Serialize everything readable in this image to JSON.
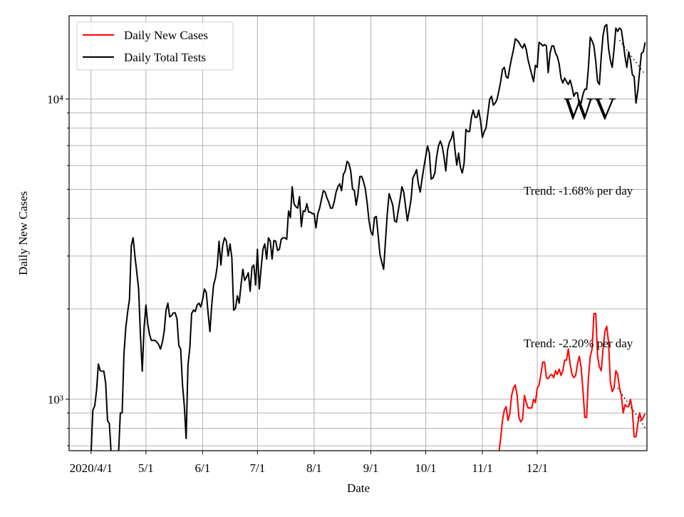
{
  "chart_data": {
    "type": "line",
    "xlabel": "Date",
    "ylabel": "Daily New Cases",
    "log_y": true,
    "grid": true,
    "legend": "upper left",
    "xlim": [
      "2020-03-20",
      "2021-01-30"
    ],
    "xticks": [
      {
        "value": "2020-04-01",
        "label": "2020/4/1"
      },
      {
        "value": "2020-05-01",
        "label": "5/1"
      },
      {
        "value": "2020-06-01",
        "label": "6/1"
      },
      {
        "value": "2020-07-01",
        "label": "7/1"
      },
      {
        "value": "2020-08-01",
        "label": "8/1"
      },
      {
        "value": "2020-09-01",
        "label": "9/1"
      },
      {
        "value": "2020-10-01",
        "label": "10/1"
      },
      {
        "value": "2020-11-01",
        "label": "11/1"
      },
      {
        "value": "2020-12-01",
        "label": "12/1"
      }
    ],
    "ylim": [
      674,
      18950
    ],
    "yticks": [
      {
        "value": 1000,
        "label": "10³"
      },
      {
        "value": 10000,
        "label": "10⁴"
      }
    ],
    "y_minor_ticks": [
      700,
      800,
      900,
      2000,
      3000,
      4000,
      5000,
      6000,
      7000,
      8000,
      9000
    ],
    "annotations": [
      "Trend: -1.68% per day",
      "Trend: -2.20% per day",
      "WV"
    ],
    "series": [
      {
        "name": "Daily New Cases",
        "color": "#ff0000",
        "x": [
          "2020-11-10",
          "2020-11-11",
          "2020-11-12",
          "2020-11-13",
          "2020-11-14",
          "2020-11-15",
          "2020-11-16",
          "2020-11-17",
          "2020-11-18",
          "2020-11-19",
          "2020-11-20",
          "2020-11-21",
          "2020-11-22",
          "2020-11-23",
          "2020-11-24",
          "2020-11-25",
          "2020-11-26",
          "2020-11-27",
          "2020-11-28",
          "2020-11-29",
          "2020-11-30",
          "2020-12-01",
          "2020-12-02",
          "2020-12-03",
          "2020-12-04",
          "2020-12-05",
          "2020-12-06",
          "2020-12-07",
          "2020-12-08",
          "2020-12-09",
          "2020-12-10",
          "2020-12-11",
          "2020-12-12",
          "2020-12-13",
          "2020-12-14",
          "2020-12-15",
          "2020-12-16",
          "2020-12-17",
          "2020-12-18",
          "2020-12-19",
          "2020-12-20",
          "2020-12-21",
          "2020-12-22",
          "2020-12-23",
          "2020-12-24",
          "2020-12-25",
          "2020-12-26",
          "2020-12-27",
          "2020-12-28",
          "2020-12-29",
          "2020-12-30",
          "2020-12-31",
          "2021-01-01",
          "2021-01-02",
          "2021-01-03",
          "2021-01-04",
          "2021-01-05",
          "2021-01-06",
          "2021-01-07",
          "2021-01-08",
          "2021-01-09",
          "2021-01-10",
          "2021-01-11",
          "2021-01-12",
          "2021-01-13",
          "2021-01-14",
          "2021-01-15",
          "2021-01-16",
          "2021-01-17",
          "2021-01-18",
          "2021-01-19",
          "2021-01-20",
          "2021-01-21",
          "2021-01-22",
          "2021-01-23",
          "2021-01-24",
          "2021-01-25",
          "2021-01-26",
          "2021-01-27",
          "2021-01-28",
          "2021-01-29"
        ],
        "values": [
          660,
          740,
          850,
          920,
          945,
          850,
          896,
          1030,
          1090,
          1116,
          1030,
          870,
          840,
          860,
          1030,
          975,
          935,
          935,
          935,
          1000,
          975,
          1090,
          1116,
          1210,
          1330,
          1330,
          1180,
          1170,
          1200,
          1210,
          1180,
          1245,
          1210,
          1260,
          1200,
          1245,
          1350,
          1350,
          1470,
          1310,
          1210,
          1180,
          1200,
          1310,
          1390,
          1280,
          1070,
          870,
          870,
          1180,
          1390,
          1470,
          1930,
          1930,
          1390,
          1280,
          1245,
          1470,
          1680,
          1750,
          1550,
          1140,
          1060,
          1090,
          1245,
          1210,
          1090,
          1030,
          900,
          960,
          945,
          945,
          1000,
          920,
          750,
          750,
          830,
          900,
          850,
          870,
          896
        ]
      },
      {
        "name": "Daily Total Tests",
        "color": "#000000",
        "x": [
          "2020-04-01",
          "2020-04-02",
          "2020-04-03",
          "2020-04-04",
          "2020-04-05",
          "2020-04-06",
          "2020-04-07",
          "2020-04-08",
          "2020-04-09",
          "2020-04-10",
          "2020-04-11",
          "2020-04-12",
          "2020-04-13",
          "2020-04-14",
          "2020-04-15",
          "2020-04-16",
          "2020-04-17",
          "2020-04-18",
          "2020-04-19",
          "2020-04-20",
          "2020-04-21",
          "2020-04-22",
          "2020-04-23",
          "2020-04-24",
          "2020-04-25",
          "2020-04-26",
          "2020-04-27",
          "2020-04-28",
          "2020-04-29",
          "2020-04-30",
          "2020-05-01",
          "2020-05-02",
          "2020-05-03",
          "2020-05-04",
          "2020-05-05",
          "2020-05-06",
          "2020-05-07",
          "2020-05-08",
          "2020-05-09",
          "2020-05-10",
          "2020-05-11",
          "2020-05-12",
          "2020-05-13",
          "2020-05-14",
          "2020-05-15",
          "2020-05-16",
          "2020-05-17",
          "2020-05-18",
          "2020-05-19",
          "2020-05-20",
          "2020-05-21",
          "2020-05-22",
          "2020-05-23",
          "2020-05-24",
          "2020-05-25",
          "2020-05-26",
          "2020-05-27",
          "2020-05-28",
          "2020-05-29",
          "2020-05-30",
          "2020-05-31",
          "2020-06-01",
          "2020-06-02",
          "2020-06-03",
          "2020-06-04",
          "2020-06-05",
          "2020-06-06",
          "2020-06-07",
          "2020-06-08",
          "2020-06-09",
          "2020-06-10",
          "2020-06-11",
          "2020-06-12",
          "2020-06-13",
          "2020-06-14",
          "2020-06-15",
          "2020-06-16",
          "2020-06-17",
          "2020-06-18",
          "2020-06-19",
          "2020-06-20",
          "2020-06-21",
          "2020-06-22",
          "2020-06-23",
          "2020-06-24",
          "2020-06-25",
          "2020-06-26",
          "2020-06-27",
          "2020-06-28",
          "2020-06-29",
          "2020-06-30",
          "2020-07-01",
          "2020-07-02",
          "2020-07-03",
          "2020-07-04",
          "2020-07-05",
          "2020-07-06",
          "2020-07-07",
          "2020-07-08",
          "2020-07-09",
          "2020-07-10",
          "2020-07-11",
          "2020-07-12",
          "2020-07-13",
          "2020-07-14",
          "2020-07-15",
          "2020-07-16",
          "2020-07-17",
          "2020-07-18",
          "2020-07-19",
          "2020-07-20",
          "2020-07-21",
          "2020-07-22",
          "2020-07-23",
          "2020-07-24",
          "2020-07-25",
          "2020-07-26",
          "2020-07-27",
          "2020-07-28",
          "2020-07-29",
          "2020-07-30",
          "2020-07-31",
          "2020-08-01",
          "2020-08-02",
          "2020-08-03",
          "2020-08-04",
          "2020-08-05",
          "2020-08-06",
          "2020-08-07",
          "2020-08-08",
          "2020-08-09",
          "2020-08-10",
          "2020-08-11",
          "2020-08-12",
          "2020-08-13",
          "2020-08-14",
          "2020-08-15",
          "2020-08-16",
          "2020-08-17",
          "2020-08-18",
          "2020-08-19",
          "2020-08-20",
          "2020-08-21",
          "2020-08-22",
          "2020-08-23",
          "2020-08-24",
          "2020-08-25",
          "2020-08-26",
          "2020-08-27",
          "2020-08-28",
          "2020-08-29",
          "2020-08-30",
          "2020-08-31",
          "2020-09-01",
          "2020-09-02",
          "2020-09-03",
          "2020-09-04",
          "2020-09-05",
          "2020-09-06",
          "2020-09-07",
          "2020-09-08",
          "2020-09-09",
          "2020-09-10",
          "2020-09-11",
          "2020-09-12",
          "2020-09-13",
          "2020-09-14",
          "2020-09-15",
          "2020-09-16",
          "2020-09-17",
          "2020-09-18",
          "2020-09-19",
          "2020-09-20",
          "2020-09-21",
          "2020-09-22",
          "2020-09-23",
          "2020-09-24",
          "2020-09-25",
          "2020-09-26",
          "2020-09-27",
          "2020-09-28",
          "2020-09-29",
          "2020-09-30",
          "2020-10-01",
          "2020-10-02",
          "2020-10-03",
          "2020-10-04",
          "2020-10-05",
          "2020-10-06",
          "2020-10-07",
          "2020-10-08",
          "2020-10-09",
          "2020-10-10",
          "2020-10-11",
          "2020-10-12",
          "2020-10-13",
          "2020-10-14",
          "2020-10-15",
          "2020-10-16",
          "2020-10-17",
          "2020-10-18",
          "2020-10-19",
          "2020-10-20",
          "2020-10-21",
          "2020-10-22",
          "2020-10-23",
          "2020-10-24",
          "2020-10-25",
          "2020-10-26",
          "2020-10-27",
          "2020-10-28",
          "2020-10-29",
          "2020-10-30",
          "2020-10-31",
          "2020-11-01",
          "2020-11-02",
          "2020-11-03",
          "2020-11-04",
          "2020-11-05",
          "2020-11-06",
          "2020-11-07",
          "2020-11-08",
          "2020-11-09",
          "2020-11-10",
          "2020-11-11",
          "2020-11-12",
          "2020-11-13",
          "2020-11-14",
          "2020-11-15",
          "2020-11-16",
          "2020-11-17",
          "2020-11-18",
          "2020-11-19",
          "2020-11-20",
          "2020-11-21",
          "2020-11-22",
          "2020-11-23",
          "2020-11-24",
          "2020-11-25",
          "2020-11-26",
          "2020-11-27",
          "2020-11-28",
          "2020-11-29",
          "2020-11-30",
          "2020-12-01",
          "2020-12-02",
          "2020-12-03",
          "2020-12-04",
          "2020-12-05",
          "2020-12-06",
          "2020-12-07",
          "2020-12-08",
          "2020-12-09",
          "2020-12-10",
          "2020-12-11",
          "2020-12-12",
          "2020-12-13",
          "2020-12-14",
          "2020-12-15",
          "2020-12-16",
          "2020-12-17",
          "2020-12-18",
          "2020-12-19",
          "2020-12-20",
          "2020-12-21",
          "2020-12-22",
          "2020-12-23",
          "2020-12-24",
          "2020-12-25",
          "2020-12-26",
          "2020-12-27",
          "2020-12-28",
          "2020-12-29",
          "2020-12-30",
          "2020-12-31",
          "2021-01-01",
          "2021-01-02",
          "2021-01-03",
          "2021-01-04",
          "2021-01-05",
          "2021-01-06",
          "2021-01-07",
          "2021-01-08",
          "2021-01-09",
          "2021-01-10",
          "2021-01-11",
          "2021-01-12",
          "2021-01-13",
          "2021-01-14",
          "2021-01-15",
          "2021-01-16",
          "2021-01-17",
          "2021-01-18",
          "2021-01-19",
          "2021-01-20",
          "2021-01-21",
          "2021-01-22",
          "2021-01-23",
          "2021-01-24",
          "2021-01-25",
          "2021-01-26",
          "2021-01-27",
          "2021-01-28",
          "2021-01-29"
        ],
        "values": [
          660,
          920,
          950,
          1070,
          1310,
          1245,
          1240,
          1240,
          1130,
          850,
          830,
          660,
          640,
          640,
          640,
          650,
          900,
          900,
          1420,
          1730,
          1950,
          2150,
          3250,
          3450,
          3000,
          2650,
          2330,
          1640,
          1240,
          1730,
          2060,
          1780,
          1640,
          1570,
          1570,
          1570,
          1550,
          1520,
          1470,
          1550,
          1680,
          1980,
          2090,
          1880,
          1900,
          1940,
          1940,
          1850,
          1510,
          1470,
          1120,
          950,
          740,
          1300,
          1480,
          1930,
          1980,
          1960,
          2060,
          2090,
          2030,
          2150,
          2330,
          2270,
          1940,
          1680,
          2060,
          2400,
          2530,
          2770,
          3360,
          2800,
          3260,
          3450,
          3360,
          3000,
          3290,
          2960,
          1980,
          2010,
          2210,
          2090,
          2400,
          2710,
          2490,
          2550,
          2640,
          2290,
          2750,
          2800,
          2400,
          3160,
          2330,
          2730,
          3160,
          3290,
          2930,
          3450,
          3360,
          2930,
          3380,
          3360,
          3130,
          3160,
          3410,
          3450,
          3450,
          3410,
          4240,
          4030,
          5100,
          4480,
          4380,
          4330,
          4730,
          3760,
          4240,
          4220,
          4480,
          4200,
          4200,
          4150,
          4150,
          3720,
          4150,
          4330,
          4630,
          4950,
          4900,
          4680,
          4530,
          4330,
          4330,
          4550,
          4900,
          5100,
          5220,
          4950,
          5610,
          5760,
          6200,
          6100,
          5760,
          5020,
          4950,
          4430,
          4840,
          5520,
          5520,
          5300,
          5020,
          4500,
          3930,
          3620,
          3520,
          4030,
          4060,
          3520,
          3030,
          2860,
          2710,
          3360,
          4150,
          4840,
          4630,
          4430,
          3930,
          3890,
          4250,
          4630,
          5100,
          4900,
          4380,
          3930,
          4250,
          4630,
          5460,
          5610,
          5820,
          5220,
          4900,
          5410,
          5920,
          6430,
          6980,
          6610,
          5410,
          5460,
          5670,
          6430,
          6980,
          7250,
          6980,
          6430,
          5760,
          6780,
          7180,
          7380,
          7790,
          6780,
          6020,
          6610,
          5920,
          5670,
          6100,
          7920,
          7790,
          7790,
          8690,
          9180,
          8690,
          8690,
          9180,
          8460,
          7450,
          7790,
          8005,
          8930,
          9970,
          10220,
          9540,
          9690,
          9970,
          10640,
          11430,
          12540,
          12750,
          11870,
          11740,
          12750,
          13690,
          14610,
          15870,
          15700,
          15440,
          15030,
          14780,
          15280,
          14610,
          13470,
          12750,
          12070,
          11430,
          12950,
          12750,
          15440,
          15280,
          15030,
          15190,
          15030,
          12250,
          14210,
          15030,
          15030,
          14210,
          13840,
          13080,
          11740,
          11310,
          11740,
          11430,
          11180,
          11560,
          10960,
          10220,
          10490,
          10490,
          9540,
          9690,
          10370,
          10780,
          10780,
          12750,
          16070,
          15610,
          15030,
          13330,
          11430,
          11180,
          13840,
          16300,
          17500,
          17700,
          14780,
          13470,
          12750,
          14610,
          17230,
          16800,
          17230,
          17000,
          15440,
          13840,
          12750,
          14360,
          13470,
          12070,
          11870,
          9690,
          10640,
          12400,
          14210,
          14360,
          15440
        ]
      }
    ],
    "trend_lines": [
      {
        "color": "#000000",
        "x": [
          "2021-01-15",
          "2021-01-29"
        ],
        "values": [
          15700,
          12070
        ]
      },
      {
        "color": "#000000",
        "x": [
          "2021-01-14",
          "2021-01-29"
        ],
        "values": [
          1090,
          803
        ]
      }
    ]
  }
}
